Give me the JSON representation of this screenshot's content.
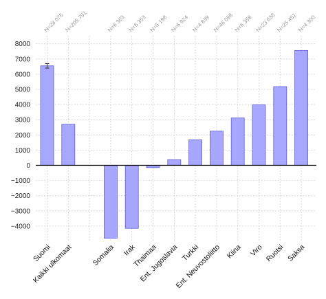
{
  "chart_data": {
    "type": "bar",
    "title": "",
    "xlabel": "",
    "ylabel": "",
    "ylim": [
      -4800,
      8400
    ],
    "yticks": [
      -4000,
      -3000,
      -2000,
      -1000,
      0,
      1000,
      2000,
      3000,
      4000,
      5000,
      6000,
      7000,
      8000
    ],
    "ytick_labels": [
      "−4000",
      "−3000",
      "−2000",
      "−1000",
      "0",
      "1000",
      "2000",
      "3000",
      "4000",
      "5000",
      "6000",
      "7000",
      "8000"
    ],
    "grid": true,
    "categories": [
      "Suomi",
      "Kaikki ulkomaat",
      "",
      "Somalia",
      "Irak",
      "Thaimaa",
      "Ent. Jugoslavia",
      "Turkki",
      "Ent. Neuvostoliitto",
      "Kiina",
      "Viro",
      "Ruotsi",
      "Saksa"
    ],
    "values": [
      6550,
      2700,
      null,
      -4800,
      -4150,
      -150,
      370,
      1680,
      2250,
      3120,
      3980,
      5180,
      7560
    ],
    "n_labels": [
      "N=28 078",
      "N=205 791",
      "",
      "N=6 363",
      "N=6 353",
      "N=5 198",
      "N=6 924",
      "N=4 839",
      "N=46 098",
      "N=6 358",
      "N=23 636",
      "N=25 451",
      "N=4 300"
    ],
    "error_bars": [
      {
        "category": "Suomi",
        "low": 6400,
        "high": 6700
      }
    ],
    "colors": {
      "bar_fill": "#a7a7ff",
      "bar_stroke": "#5e5ed6",
      "grid": "#d0d0d0",
      "zero_line": "#000000",
      "n_label": "#999999"
    }
  }
}
